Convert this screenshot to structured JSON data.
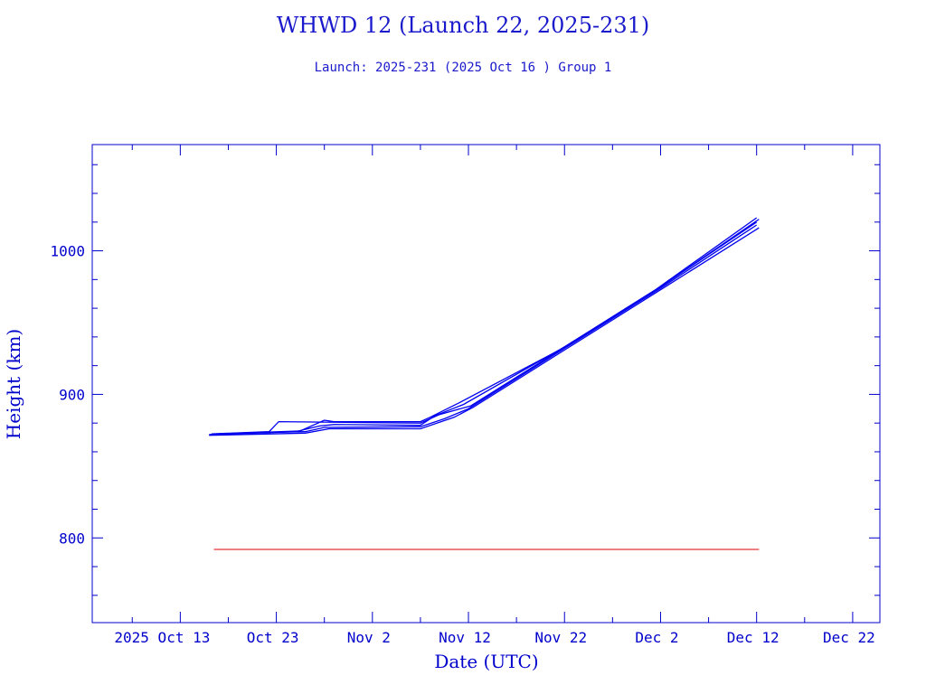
{
  "chart_data": {
    "type": "line",
    "title": "WHWD 12 (Launch 22, 2025-231)",
    "subtitle": "Launch: 2025-231  (2025 Oct 16 )  Group 1",
    "xlabel": "Date (UTC)",
    "ylabel": "Height (km)",
    "xlim": [
      "2025-10-03T20:00",
      "2025-12-24T20:00"
    ],
    "ylim": [
      741,
      1074
    ],
    "x_ticks": [
      {
        "date": "2025-10-13",
        "label": "2025 Oct 13"
      },
      {
        "date": "2025-10-23",
        "label": "Oct 23"
      },
      {
        "date": "2025-11-02",
        "label": "Nov  2"
      },
      {
        "date": "2025-11-12",
        "label": "Nov 12"
      },
      {
        "date": "2025-11-22",
        "label": "Nov 22"
      },
      {
        "date": "2025-12-02",
        "label": "Dec  2"
      },
      {
        "date": "2025-12-12",
        "label": "Dec 12"
      },
      {
        "date": "2025-12-22",
        "label": "Dec 22"
      }
    ],
    "y_ticks": [
      800,
      900,
      1000
    ],
    "grid": false,
    "colors": {
      "axes": "#0000cc",
      "series": "#0000ee",
      "reference": "#dd0000"
    },
    "series": [
      {
        "points": [
          [
            "2025-10-16T00:00",
            872
          ],
          [
            "2025-10-22T00:00",
            873.5
          ],
          [
            "2025-10-26T00:00",
            874
          ],
          [
            "2025-10-28T00:00",
            877
          ],
          [
            "2025-11-07T00:00",
            877.5
          ],
          [
            "2025-11-09T12:00",
            883
          ],
          [
            "2025-11-12T00:00",
            890
          ],
          [
            "2025-11-22T00:00",
            932
          ],
          [
            "2025-12-02T00:00",
            974
          ],
          [
            "2025-12-12T00:00",
            1018
          ]
        ]
      },
      {
        "points": [
          [
            "2025-10-16T06:00",
            872.5
          ],
          [
            "2025-10-22T06:00",
            874
          ],
          [
            "2025-10-23T06:00",
            881
          ],
          [
            "2025-11-07T00:00",
            880
          ],
          [
            "2025-11-09T00:00",
            886
          ],
          [
            "2025-11-12T06:00",
            892
          ],
          [
            "2025-11-22T06:00",
            934
          ],
          [
            "2025-12-02T06:00",
            976
          ],
          [
            "2025-12-12T06:00",
            1022
          ]
        ]
      },
      {
        "points": [
          [
            "2025-10-16T12:00",
            872
          ],
          [
            "2025-10-25T00:00",
            874
          ],
          [
            "2025-10-27T12:00",
            878
          ],
          [
            "2025-10-29T00:00",
            879
          ],
          [
            "2025-11-07T00:00",
            878.5
          ],
          [
            "2025-11-08T12:00",
            885
          ],
          [
            "2025-11-11T12:00",
            893
          ],
          [
            "2025-11-22T00:00",
            933
          ],
          [
            "2025-12-02T00:00",
            975
          ],
          [
            "2025-12-12T00:00",
            1020
          ]
        ]
      },
      {
        "points": [
          [
            "2025-10-16T00:00",
            871.5
          ],
          [
            "2025-10-26T00:00",
            873
          ],
          [
            "2025-10-28T12:00",
            876
          ],
          [
            "2025-11-07T00:00",
            876
          ],
          [
            "2025-11-10T12:00",
            884
          ],
          [
            "2025-11-12T12:00",
            891
          ],
          [
            "2025-11-22T12:00",
            933
          ],
          [
            "2025-12-02T12:00",
            975
          ],
          [
            "2025-12-12T06:00",
            1016
          ]
        ]
      },
      {
        "points": [
          [
            "2025-10-16T18:00",
            872.5
          ],
          [
            "2025-10-25T12:00",
            874.5
          ],
          [
            "2025-10-28T00:00",
            882
          ],
          [
            "2025-10-29T00:00",
            881
          ],
          [
            "2025-10-31T00:00",
            881
          ],
          [
            "2025-11-07T00:00",
            881
          ],
          [
            "2025-11-08T00:00",
            884
          ],
          [
            "2025-11-11T00:00",
            894
          ],
          [
            "2025-11-21T12:00",
            931
          ],
          [
            "2025-12-01T12:00",
            973
          ],
          [
            "2025-12-12T00:00",
            1023
          ]
        ]
      }
    ],
    "reference_line": {
      "value": 792,
      "from": "2025-10-16T12:00",
      "to": "2025-12-12T06:00"
    }
  }
}
